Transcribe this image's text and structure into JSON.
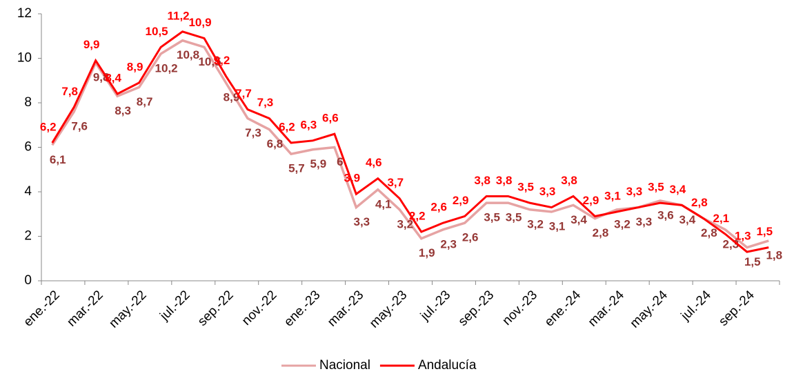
{
  "chart_data": {
    "type": "line",
    "categories": [
      "ene.-22",
      null,
      "mar.-22",
      null,
      "may.-22",
      null,
      "jul.-22",
      null,
      "sep.-22",
      null,
      "nov.-22",
      null,
      "ene.-23",
      null,
      "mar.-23",
      null,
      "may.-23",
      null,
      "jul.-23",
      null,
      "sep.-23",
      null,
      "nov.-23",
      null,
      "ene.-24",
      null,
      "mar.-24",
      null,
      "may.-24",
      null,
      "jul.-24",
      null,
      "sep.-24",
      null
    ],
    "series": [
      {
        "name": "Nacional",
        "color": "#e6a3a3",
        "label_color": "#953735",
        "values": [
          6.1,
          7.6,
          9.8,
          8.3,
          8.7,
          10.2,
          10.8,
          10.5,
          8.9,
          7.3,
          6.8,
          5.7,
          5.9,
          6,
          3.3,
          4.1,
          3.2,
          1.9,
          2.3,
          2.6,
          3.5,
          3.5,
          3.2,
          3.1,
          3.4,
          2.8,
          3.2,
          3.3,
          3.6,
          3.4,
          2.8,
          2.3,
          1.5,
          1.8
        ],
        "value_labels": [
          "6,1",
          "7,6",
          "9,8",
          "8,3",
          "8,7",
          "10,2",
          "10,8",
          "10,5",
          "8,9",
          "7,3",
          "6,8",
          "5,7",
          "5,9",
          "6",
          "3,3",
          "4,1",
          "3,2",
          "1,9",
          "2,3",
          "2,6",
          "3,5",
          "3,5",
          "3,2",
          "3,1",
          "3,4",
          "2,8",
          "3,2",
          "3,3",
          "3,6",
          "3,4",
          "2,8",
          "2,3",
          "1,5",
          "1,8"
        ]
      },
      {
        "name": "Andalucía",
        "color": "#ff0000",
        "label_color": "#ff0000",
        "values": [
          6.2,
          7.8,
          9.9,
          8.4,
          8.9,
          10.5,
          11.2,
          10.9,
          9.2,
          7.7,
          7.3,
          6.2,
          6.3,
          6.6,
          3.9,
          4.6,
          3.7,
          2.2,
          2.6,
          2.9,
          3.8,
          3.8,
          3.5,
          3.3,
          3.8,
          2.9,
          3.1,
          3.3,
          3.5,
          3.4,
          2.8,
          2.1,
          1.3,
          1.5
        ],
        "value_labels": [
          "6,2",
          "7,8",
          "9,9",
          "8,4",
          "8,9",
          "10,5",
          "11,2",
          "10,9",
          "9,2",
          "7,7",
          "7,3",
          "6,2",
          "6,3",
          "6,6",
          "3,9",
          "4,6",
          "3,7",
          "2,2",
          "2,6",
          "2,9",
          "3,8",
          "3,8",
          "3,5",
          "3,3",
          "3,8",
          "2,9",
          "3,1",
          "3,3",
          "3,5",
          "3,4",
          "2,8",
          "2,1",
          "1,3",
          "1,5"
        ]
      }
    ],
    "ylim": [
      0,
      12
    ],
    "yticks": [
      0,
      2,
      4,
      6,
      8,
      10,
      12
    ],
    "legend": "bottom"
  }
}
